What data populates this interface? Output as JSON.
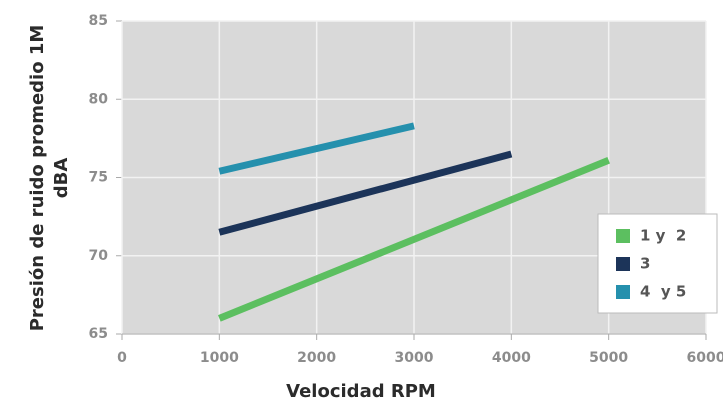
{
  "chart_data": {
    "type": "line",
    "xlabel": "Velocidad RPM",
    "ylabel": [
      "Presión de ruido promedio 1M",
      "dBA"
    ],
    "xlim": [
      0,
      6000
    ],
    "xticks": [
      0,
      1000,
      2000,
      3000,
      4000,
      5000,
      6000
    ],
    "ylim": [
      65,
      85
    ],
    "yticks": [
      65,
      70,
      75,
      80,
      85
    ],
    "grid": true,
    "legend": "right",
    "series": [
      {
        "name": "1 y  2",
        "color": "#5cbf60",
        "x": [
          1000,
          5000
        ],
        "values": [
          66,
          76.1
        ]
      },
      {
        "name": "3",
        "color": "#1c3459",
        "x": [
          1000,
          4000
        ],
        "values": [
          71.5,
          76.5
        ]
      },
      {
        "name": "4  y 5",
        "color": "#2590ad",
        "x": [
          1000,
          3000
        ],
        "values": [
          75.4,
          78.3
        ]
      }
    ]
  }
}
